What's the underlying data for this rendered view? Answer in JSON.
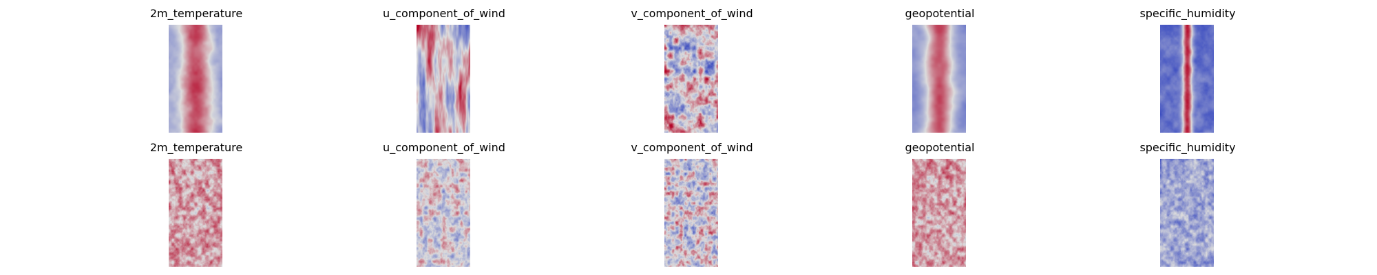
{
  "colormap": {
    "low": "#3b4cc0",
    "mid": "#dddddd",
    "high": "#b40426"
  },
  "rows": [
    {
      "panels": [
        {
          "title": "2m_temperature",
          "pattern": "warm-band"
        },
        {
          "title": "u_component_of_wind",
          "pattern": "streaky-mixed"
        },
        {
          "title": "v_component_of_wind",
          "pattern": "patchy-mixed"
        },
        {
          "title": "geopotential",
          "pattern": "warm-band-blue-edges"
        },
        {
          "title": "specific_humidity",
          "pattern": "narrow-hot-core"
        }
      ]
    },
    {
      "panels": [
        {
          "title": "2m_temperature",
          "pattern": "noisy-warm"
        },
        {
          "title": "u_component_of_wind",
          "pattern": "noisy-light"
        },
        {
          "title": "v_component_of_wind",
          "pattern": "noisy-mixed"
        },
        {
          "title": "geopotential",
          "pattern": "noisy-warm"
        },
        {
          "title": "specific_humidity",
          "pattern": "noisy-cool"
        }
      ]
    }
  ]
}
